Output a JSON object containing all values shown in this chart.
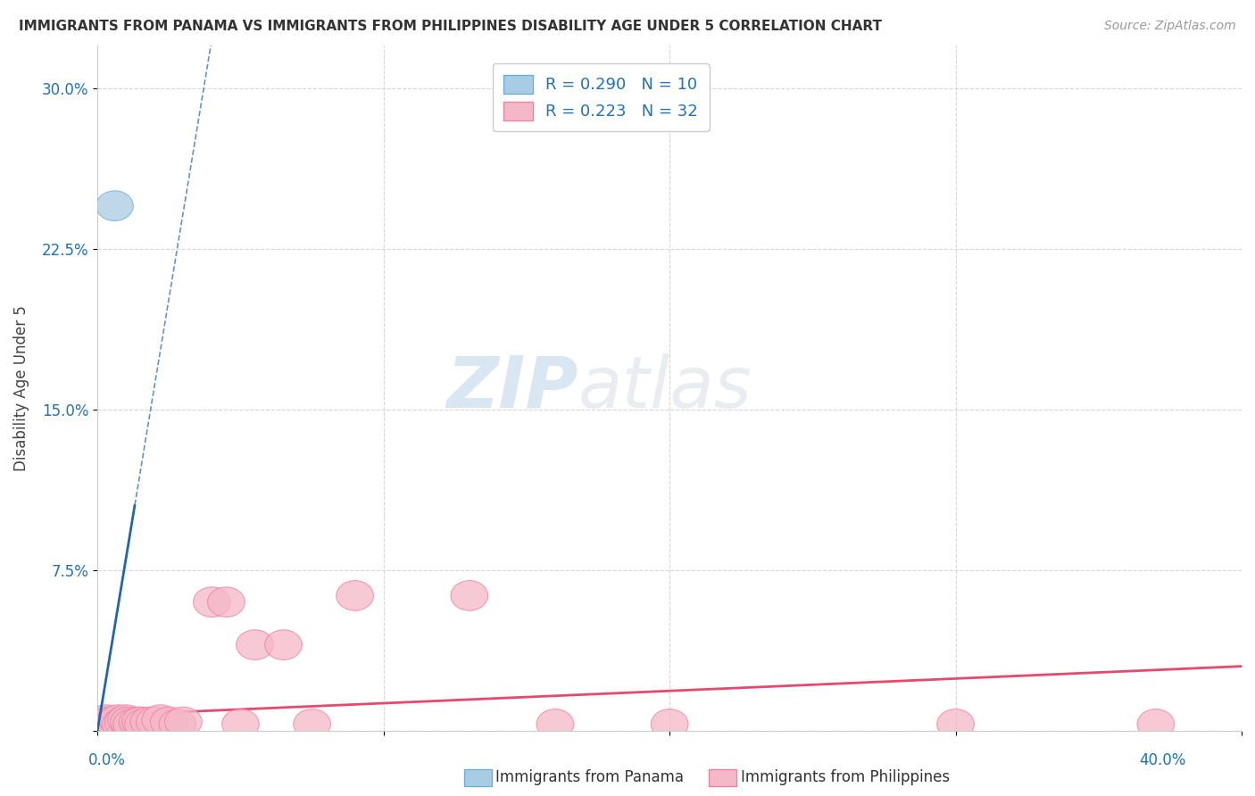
{
  "title": "IMMIGRANTS FROM PANAMA VS IMMIGRANTS FROM PHILIPPINES DISABILITY AGE UNDER 5 CORRELATION CHART",
  "source": "Source: ZipAtlas.com",
  "ylabel": "Disability Age Under 5",
  "yticks": [
    0.0,
    0.075,
    0.15,
    0.225,
    0.3
  ],
  "ytick_labels": [
    "",
    "7.5%",
    "15.0%",
    "22.5%",
    "30.0%"
  ],
  "xlim": [
    0.0,
    0.4
  ],
  "ylim": [
    0.0,
    0.32
  ],
  "panama_label": "R = 0.290   N = 10",
  "philippines_label": "R = 0.223   N = 32",
  "panama_color": "#a8cce4",
  "philippines_color": "#f4b8c8",
  "panama_edge_color": "#6baed6",
  "philippines_edge_color": "#f47fa0",
  "panama_line_color": "#2166ac",
  "philippines_line_color": "#e8486e",
  "legend_panama": "Immigrants from Panama",
  "legend_philippines": "Immigrants from Philippines",
  "watermark_zip": "ZIP",
  "watermark_atlas": "atlas",
  "panama_x": [
    0.004,
    0.005,
    0.006,
    0.007,
    0.008,
    0.009,
    0.006,
    0.007,
    0.008,
    0.006
  ],
  "panama_y": [
    0.003,
    0.004,
    0.003,
    0.003,
    0.004,
    0.003,
    0.245,
    0.003,
    0.003,
    0.003
  ],
  "philippines_x": [
    0.002,
    0.003,
    0.004,
    0.005,
    0.006,
    0.007,
    0.008,
    0.009,
    0.01,
    0.011,
    0.012,
    0.014,
    0.015,
    0.016,
    0.018,
    0.02,
    0.022,
    0.025,
    0.028,
    0.03,
    0.04,
    0.045,
    0.05,
    0.055,
    0.065,
    0.075,
    0.09,
    0.13,
    0.16,
    0.2,
    0.3,
    0.37
  ],
  "philippines_y": [
    0.004,
    0.005,
    0.004,
    0.003,
    0.004,
    0.005,
    0.003,
    0.004,
    0.005,
    0.004,
    0.003,
    0.004,
    0.004,
    0.003,
    0.004,
    0.004,
    0.005,
    0.004,
    0.003,
    0.004,
    0.06,
    0.06,
    0.003,
    0.04,
    0.04,
    0.003,
    0.063,
    0.063,
    0.003,
    0.003,
    0.003,
    0.003
  ],
  "panama_trend_x0": 0.0,
  "panama_trend_y0": 0.0,
  "panama_trend_x1": 0.013,
  "panama_trend_y1": 0.105,
  "philippines_trend_x0": 0.0,
  "philippines_trend_y0": 0.007,
  "philippines_trend_x1": 0.4,
  "philippines_trend_y1": 0.03
}
